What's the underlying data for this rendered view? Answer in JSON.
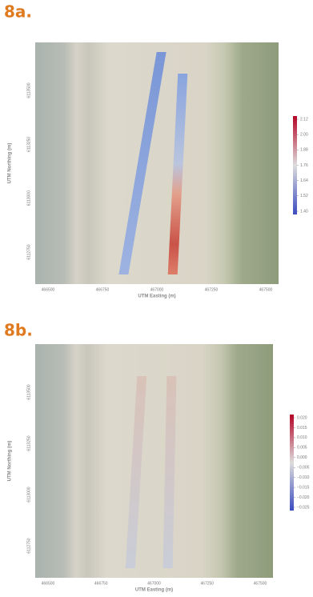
{
  "panels": [
    {
      "label": "8a.",
      "x_label": "UTM Easting (m)",
      "y_label": "UTM Northing (m)",
      "x_ticks": [
        "466500",
        "466750",
        "467000",
        "467250",
        "467500"
      ],
      "y_ticks": [
        "6113500",
        "6113250",
        "6113000",
        "6112750"
      ],
      "colorbar_ticks": [
        "2.12",
        "2.00",
        "1.88",
        "1.76",
        "1.64",
        "1.52",
        "1.40"
      ]
    },
    {
      "label": "8b.",
      "x_label": "UTM Easting (m)",
      "y_label": "UTM Northing (m)",
      "x_ticks": [
        "466500",
        "466750",
        "467000",
        "467250",
        "467500"
      ],
      "y_ticks": [
        "6113500",
        "6113250",
        "6113000",
        "6112750"
      ],
      "colorbar_ticks": [
        "0.020",
        "0.015",
        "0.010",
        "0.005",
        "0.000",
        "−0.005",
        "−0.010",
        "−0.015",
        "−0.020",
        "−0.025"
      ]
    }
  ]
}
